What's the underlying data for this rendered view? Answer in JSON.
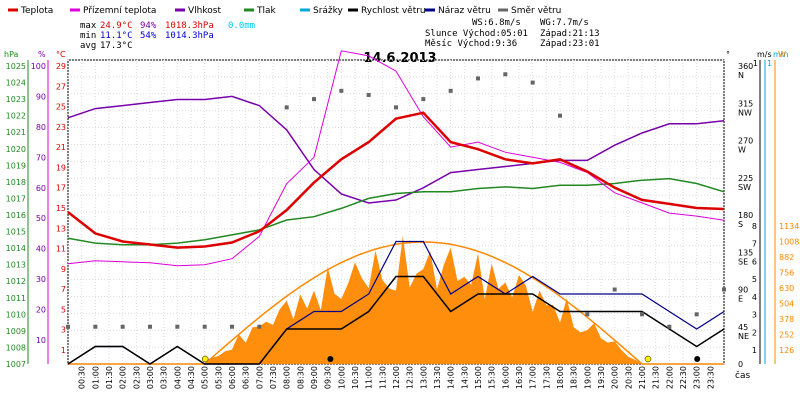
{
  "chart_data": {
    "type": "line",
    "title": "14.6.2013",
    "xlabel": "čas",
    "legend": [
      {
        "label": "Teplota",
        "color": "#dd0000"
      },
      {
        "label": "Přízemní teplota",
        "color": "#dd00dd"
      },
      {
        "label": "Vlhkost",
        "color": "#7700aa"
      },
      {
        "label": "Tlak",
        "color": "#228822"
      },
      {
        "label": "Srážky",
        "color": "#00aadd"
      },
      {
        "label": "Rychlost větru",
        "color": "#000000"
      },
      {
        "label": "Náraz větru",
        "color": "#000088"
      },
      {
        "label": "Směr větru",
        "color": "#666666"
      }
    ],
    "stats": {
      "max_label": "max",
      "min_label": "min",
      "avg_label": "avg",
      "max_t": "24.9°C",
      "max_h": "94%",
      "max_p": "1018.3hPa",
      "max_r": "0.0mm",
      "min_t": "11.1°C",
      "min_h": "54%",
      "min_p": "1014.3hPa",
      "avg_t": "17.3°C",
      "ws": "WS:6.8m/s",
      "wg": "WG:7.7m/s",
      "sun": "Slunce Východ:05:01",
      "sun_set": "Západ:21:13",
      "moon": "Měsíc Východ:9:36",
      "moon_set": "Západ:23:01"
    },
    "axes": {
      "hpa_unit": "hPa",
      "hpa_ticks": [
        "1025",
        "1024",
        "1023",
        "1022",
        "1021",
        "1020",
        "1019",
        "1018",
        "1017",
        "1016",
        "1015",
        "1014",
        "1013",
        "1012",
        "1011",
        "1010",
        "1009",
        "1008",
        "1007"
      ],
      "pct_unit": "%",
      "pct_ticks": [
        "100",
        "90",
        "80",
        "70",
        "60",
        "50",
        "40",
        "30",
        "20",
        "10"
      ],
      "temp_unit": "°C",
      "temp_ticks": [
        "29",
        "27",
        "25",
        "23",
        "21",
        "19",
        "17",
        "15",
        "13",
        "11",
        "9",
        "7",
        "5",
        "3",
        "1"
      ],
      "deg_unit": "°",
      "dir_ticks": [
        "360",
        "315",
        "270",
        "225",
        "180",
        "135",
        "90",
        "45",
        "0"
      ],
      "dir_labels": [
        "N",
        "NW",
        "W",
        "SW",
        "S",
        "SE",
        "E",
        "NE"
      ],
      "ms_unit": "m/s",
      "ms_ticks": [
        "1",
        "8",
        "7",
        "6",
        "5",
        "4",
        "3",
        "2",
        "1"
      ],
      "mm_unit": "mm",
      "mm_top": "1",
      "w_unit": "W",
      "w_ticks": [
        "1134",
        "1008",
        "882",
        "756",
        "630",
        "504",
        "378",
        "252",
        "126"
      ],
      "time_ticks": [
        "00:30",
        "01:00",
        "01:30",
        "02:00",
        "02:30",
        "03:00",
        "03:30",
        "04:00",
        "04:30",
        "05:00",
        "05:30",
        "06:00",
        "06:30",
        "07:00",
        "07:30",
        "08:00",
        "08:30",
        "09:00",
        "09:30",
        "10:00",
        "10:30",
        "11:00",
        "11:30",
        "12:00",
        "12:30",
        "13:00",
        "13:30",
        "14:00",
        "14:30",
        "15:00",
        "15:30",
        "16:00",
        "16:30",
        "17:00",
        "17:30",
        "18:00",
        "18:30",
        "19:00",
        "19:30",
        "20:00",
        "20:30",
        "21:00",
        "21:30",
        "22:00",
        "22:30",
        "23:00",
        "23:30"
      ]
    },
    "series": [
      {
        "name": "Teplota",
        "x": [
          0,
          1,
          2,
          3,
          4,
          5,
          6,
          7,
          8,
          9,
          10,
          11,
          12,
          13,
          14,
          15,
          16,
          17,
          18,
          19,
          20,
          21,
          22,
          23,
          24
        ],
        "values": [
          14.6,
          12.5,
          11.7,
          11.4,
          11.1,
          11.2,
          11.6,
          12.7,
          14.8,
          17.5,
          19.8,
          21.5,
          23.8,
          24.4,
          21.5,
          20.8,
          19.8,
          19.4,
          19.8,
          18.6,
          17.0,
          15.8,
          15.4,
          15.0,
          14.9
        ]
      },
      {
        "name": "Přízemní teplota",
        "x": [
          0,
          1,
          2,
          3,
          4,
          5,
          6,
          7,
          8,
          9,
          10,
          11,
          12,
          13,
          14,
          15,
          16,
          17,
          18,
          19,
          20,
          21,
          22,
          23,
          24
        ],
        "values": [
          9.5,
          9.8,
          9.7,
          9.6,
          9.3,
          9.4,
          10.0,
          12.2,
          17.4,
          20.0,
          30.5,
          30.0,
          28.5,
          24.0,
          21.0,
          21.5,
          20.5,
          20.0,
          19.5,
          18.5,
          16.5,
          15.5,
          14.5,
          14.2,
          13.8
        ]
      },
      {
        "name": "Vlhkost",
        "x": [
          0,
          1,
          2,
          3,
          4,
          5,
          6,
          7,
          8,
          9,
          10,
          11,
          12,
          13,
          14,
          15,
          16,
          17,
          18,
          19,
          20,
          21,
          22,
          23,
          24
        ],
        "values": [
          83,
          86,
          87,
          88,
          89,
          89,
          90,
          87,
          79,
          66,
          58,
          55,
          56,
          60,
          65,
          66,
          67,
          68,
          69,
          69,
          74,
          78,
          81,
          81,
          82
        ]
      },
      {
        "name": "Tlak",
        "x": [
          0,
          1,
          2,
          3,
          4,
          5,
          6,
          7,
          8,
          9,
          10,
          11,
          12,
          13,
          14,
          15,
          16,
          17,
          18,
          19,
          20,
          21,
          22,
          23,
          24
        ],
        "values": [
          1014.6,
          1014.3,
          1014.2,
          1014.2,
          1014.3,
          1014.5,
          1014.8,
          1015.1,
          1015.7,
          1015.9,
          1016.4,
          1017.0,
          1017.3,
          1017.4,
          1017.4,
          1017.6,
          1017.7,
          1017.6,
          1017.8,
          1017.8,
          1017.9,
          1018.1,
          1018.2,
          1017.9,
          1017.4
        ]
      },
      {
        "name": "Rychlost větru",
        "x": [
          0,
          1,
          2,
          3,
          4,
          5,
          6,
          7,
          8,
          9,
          10,
          11,
          12,
          13,
          14,
          15,
          16,
          17,
          18,
          19,
          20,
          21,
          22,
          23,
          24
        ],
        "values": [
          0,
          1,
          1,
          0,
          1,
          0,
          0,
          0,
          2,
          2,
          2,
          3,
          5,
          5,
          3,
          4,
          4,
          4,
          3,
          3,
          3,
          3,
          2,
          1,
          2
        ]
      },
      {
        "name": "Náraz větru",
        "x": [
          0,
          1,
          2,
          3,
          4,
          5,
          6,
          7,
          8,
          9,
          10,
          11,
          12,
          13,
          14,
          15,
          16,
          17,
          18,
          19,
          20,
          21,
          22,
          23,
          24
        ],
        "values": [
          0,
          1,
          1,
          0,
          1,
          0,
          0,
          0,
          2,
          3,
          3,
          4,
          7,
          7,
          4,
          5,
          4,
          5,
          4,
          4,
          4,
          4,
          3,
          2,
          3
        ]
      },
      {
        "name": "Směr větru",
        "x": [
          0,
          1,
          2,
          3,
          4,
          5,
          6,
          7,
          8,
          9,
          10,
          11,
          12,
          13,
          14,
          15,
          16,
          17,
          18,
          19,
          20,
          21,
          22,
          23,
          24
        ],
        "values": [
          45,
          45,
          45,
          45,
          45,
          45,
          45,
          45,
          310,
          320,
          330,
          325,
          310,
          320,
          330,
          345,
          350,
          340,
          300,
          60,
          90,
          60,
          45,
          60,
          90
        ]
      }
    ]
  }
}
